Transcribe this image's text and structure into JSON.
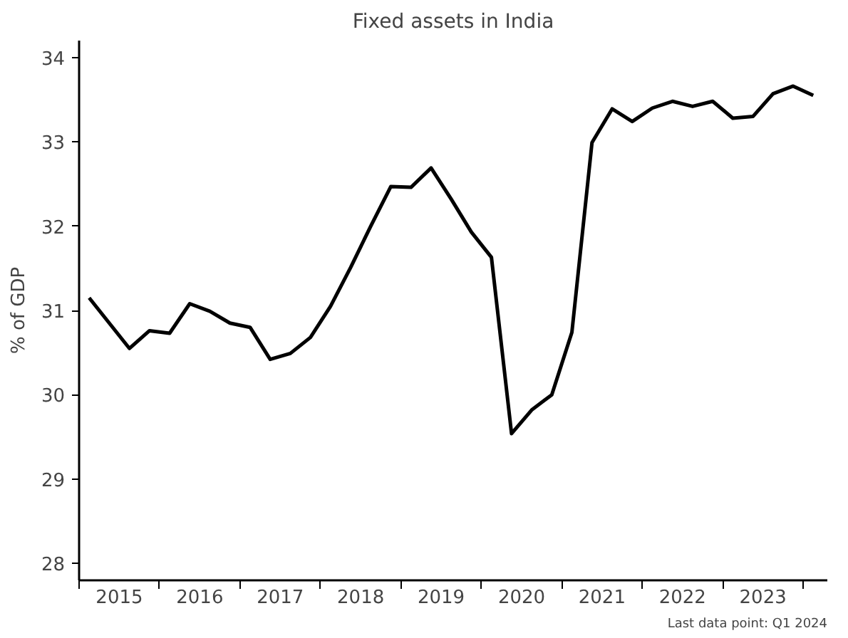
{
  "chart_data": {
    "type": "line",
    "title": "Fixed assets in India",
    "ylabel": "% of GDP",
    "x": [
      2015.125,
      2015.375,
      2015.625,
      2015.875,
      2016.125,
      2016.375,
      2016.625,
      2016.875,
      2017.125,
      2017.375,
      2017.625,
      2017.875,
      2018.125,
      2018.375,
      2018.625,
      2018.875,
      2019.125,
      2019.375,
      2019.625,
      2019.875,
      2020.125,
      2020.375,
      2020.625,
      2020.875,
      2021.125,
      2021.375,
      2021.625,
      2021.875,
      2022.125,
      2022.375,
      2022.625,
      2022.875,
      2023.125,
      2023.375,
      2023.625,
      2023.875,
      2024.125
    ],
    "series": [
      {
        "color": "#000000",
        "values": [
          31.15,
          30.85,
          30.55,
          30.76,
          30.73,
          31.08,
          30.99,
          30.85,
          30.8,
          30.42,
          30.49,
          30.68,
          31.05,
          31.51,
          32.0,
          32.47,
          32.46,
          32.69,
          32.32,
          31.93,
          31.63,
          29.54,
          29.82,
          30.0,
          30.74,
          32.99,
          33.39,
          33.24,
          33.4,
          33.48,
          33.42,
          33.48,
          33.28,
          33.3,
          33.57,
          33.66,
          33.55
        ]
      }
    ],
    "xlim": [
      2015,
      2024.3
    ],
    "xticks": [
      {
        "value": 2015,
        "label": null
      },
      {
        "value": 2015.5,
        "label": "2015"
      },
      {
        "value": 2016,
        "label": null
      },
      {
        "value": 2016.5,
        "label": "2016"
      },
      {
        "value": 2017,
        "label": null
      },
      {
        "value": 2017.5,
        "label": "2017"
      },
      {
        "value": 2018,
        "label": null
      },
      {
        "value": 2018.5,
        "label": "2018"
      },
      {
        "value": 2019,
        "label": null
      },
      {
        "value": 2019.5,
        "label": "2019"
      },
      {
        "value": 2020,
        "label": null
      },
      {
        "value": 2020.5,
        "label": "2020"
      },
      {
        "value": 2021,
        "label": null
      },
      {
        "value": 2021.5,
        "label": "2021"
      },
      {
        "value": 2022,
        "label": null
      },
      {
        "value": 2022.5,
        "label": "2022"
      },
      {
        "value": 2023,
        "label": null
      },
      {
        "value": 2023.5,
        "label": "2023"
      },
      {
        "value": 2024,
        "label": null
      }
    ],
    "ylim": [
      27.8,
      34.2
    ],
    "yticks": [
      28,
      29,
      30,
      31,
      32,
      33,
      34
    ],
    "grid": false,
    "marker": "none",
    "line_style": "solid",
    "annotations": [
      "Last data point: Q1 2024"
    ]
  }
}
